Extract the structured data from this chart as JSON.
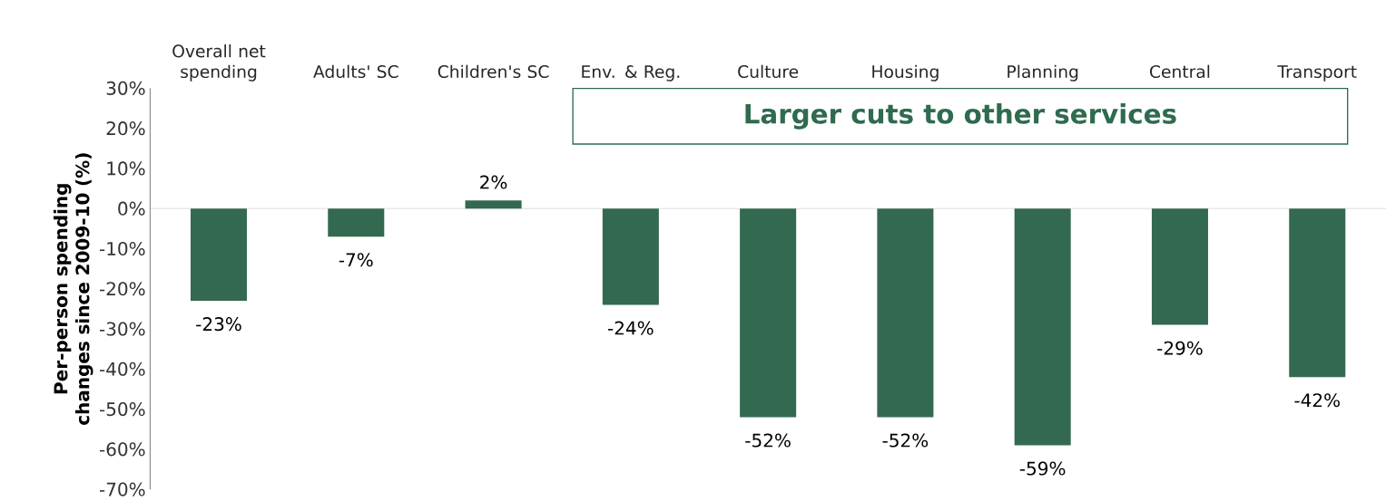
{
  "chart_data": {
    "type": "bar",
    "ylabel": "Per-person spending changes since 2009-10 (%)",
    "categories": [
      "Overall net spending",
      "Adults' SC",
      "Children's SC",
      "Env. & Reg.",
      "Culture",
      "Housing",
      "Planning",
      "Central",
      "Transport"
    ],
    "values": [
      -23,
      -7,
      2,
      -24,
      -52,
      -52,
      -59,
      -29,
      -42
    ],
    "value_labels": [
      "-23%",
      "-7%",
      "2%",
      "-24%",
      "-52%",
      "-52%",
      "-59%",
      "-29%",
      "-42%"
    ],
    "color": "#336950",
    "ylim": [
      -70,
      30
    ],
    "yticks": [
      {
        "value": 30,
        "label": "30%"
      },
      {
        "value": 20,
        "label": "20%"
      },
      {
        "value": 10,
        "label": "10%"
      },
      {
        "value": 0,
        "label": "0%"
      },
      {
        "value": -10,
        "label": "-10%"
      },
      {
        "value": -20,
        "label": "-20%"
      },
      {
        "value": -30,
        "label": "-30%"
      },
      {
        "value": -40,
        "label": "-40%"
      },
      {
        "value": -50,
        "label": "-50%"
      },
      {
        "value": -60,
        "label": "-60%"
      },
      {
        "value": -70,
        "label": "-70%"
      }
    ],
    "annotations": [
      "Larger cuts to other services"
    ]
  }
}
